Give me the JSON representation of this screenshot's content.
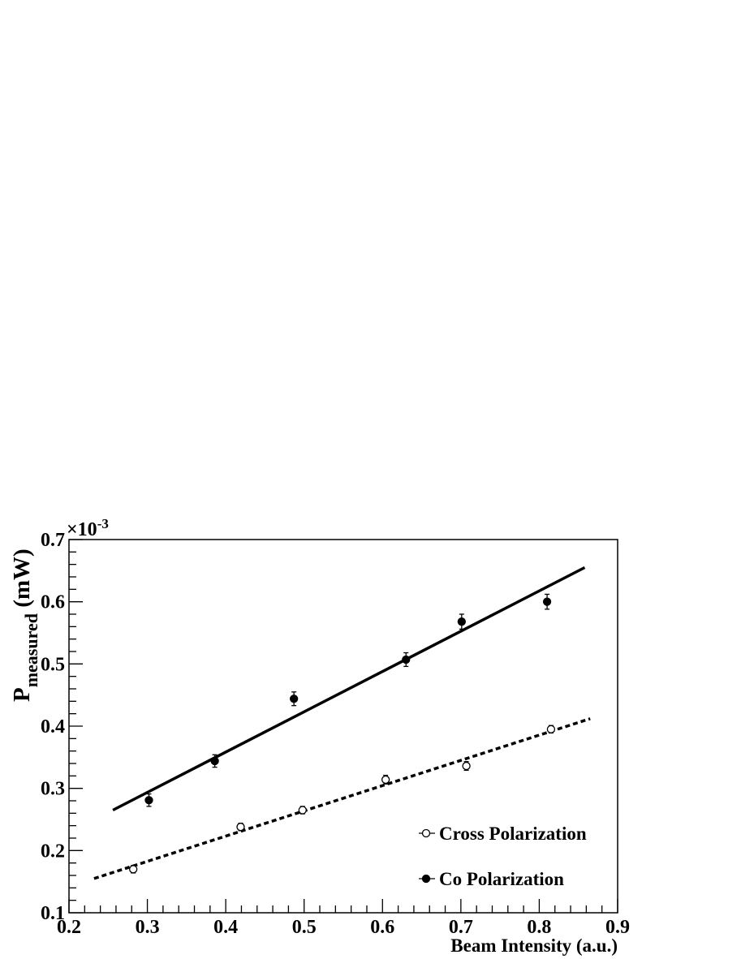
{
  "chart_data": {
    "type": "scatter",
    "xlabel": "Beam Intensity (a.u.)",
    "ylabel_main": "P",
    "ylabel_sub": "measured",
    "ylabel_unit": " (mW)",
    "y_multiplier": "×10",
    "y_multiplier_exp": "-3",
    "xlim": [
      0.2,
      0.9
    ],
    "ylim": [
      0.1,
      0.7
    ],
    "x_ticks": [
      "0.2",
      "0.3",
      "0.4",
      "0.5",
      "0.6",
      "0.7",
      "0.8",
      "0.9"
    ],
    "y_ticks": [
      "0.1",
      "0.2",
      "0.3",
      "0.4",
      "0.5",
      "0.6",
      "0.7"
    ],
    "legend_position": "bottom-right",
    "series": [
      {
        "name": "Cross Polarization",
        "marker": "open-circle",
        "points": [
          {
            "x": 0.282,
            "y": 0.17,
            "err": 0.006
          },
          {
            "x": 0.419,
            "y": 0.238,
            "err": 0.006
          },
          {
            "x": 0.498,
            "y": 0.265,
            "err": 0.006
          },
          {
            "x": 0.604,
            "y": 0.314,
            "err": 0.007
          },
          {
            "x": 0.707,
            "y": 0.336,
            "err": 0.007
          },
          {
            "x": 0.815,
            "y": 0.395,
            "err": 0.006
          }
        ],
        "fit": {
          "x": [
            0.232,
            0.865
          ],
          "y": [
            0.155,
            0.412
          ],
          "style": "dotted"
        }
      },
      {
        "name": "Co Polarization",
        "marker": "filled-circle",
        "points": [
          {
            "x": 0.302,
            "y": 0.281,
            "err": 0.01
          },
          {
            "x": 0.386,
            "y": 0.344,
            "err": 0.01
          },
          {
            "x": 0.487,
            "y": 0.444,
            "err": 0.011
          },
          {
            "x": 0.63,
            "y": 0.507,
            "err": 0.011
          },
          {
            "x": 0.701,
            "y": 0.568,
            "err": 0.012
          },
          {
            "x": 0.81,
            "y": 0.6,
            "err": 0.012
          }
        ],
        "fit": {
          "x": [
            0.256,
            0.858
          ],
          "y": [
            0.265,
            0.655
          ],
          "style": "solid"
        }
      }
    ]
  }
}
